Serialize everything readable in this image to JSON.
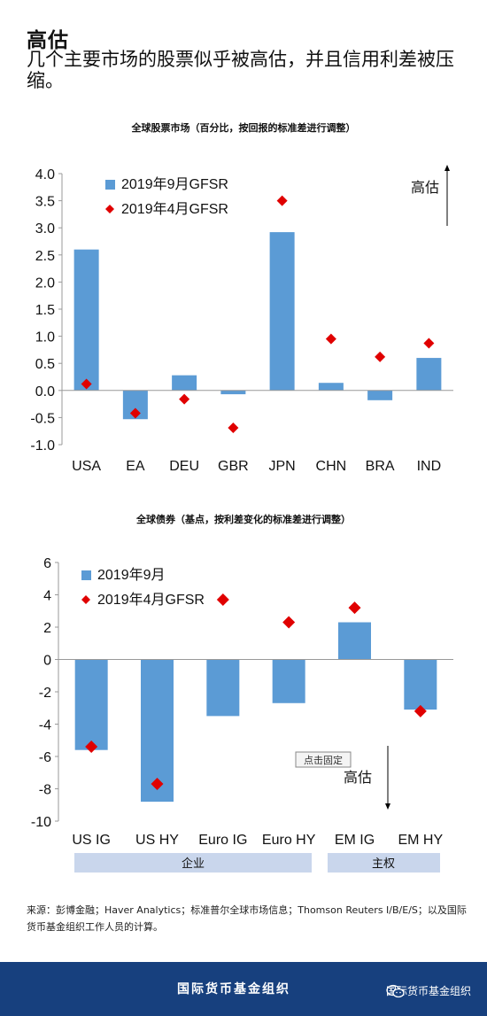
{
  "header": {
    "title": "高估",
    "subtitle": "几个主要市场的股票似乎被高估，并且信用利差被压缩。"
  },
  "colors": {
    "bar": "#5b9bd5",
    "marker": "#e00000",
    "footer": "#17407e",
    "group_band": "#c9d6ec"
  },
  "charts": [
    {
      "title": "全球股票市场（百分比，按回报的标准差进行调整）",
      "legend": [
        "2019年9月GFSR",
        "2019年4月GFSR"
      ],
      "annotation": "高估",
      "yticks": [
        "4.0",
        "3.5",
        "3.0",
        "2.5",
        "2.0",
        "1.5",
        "1.0",
        "0.5",
        "0.0",
        "-0.5",
        "-1.0"
      ]
    },
    {
      "title": "全球债券（基点，按利差变化的标准差进行调整）",
      "legend": [
        "2019年9月",
        "2019年4月GFSR"
      ],
      "annotation": "高估",
      "tooltip": "点击固定",
      "yticks": [
        "6",
        "4",
        "2",
        "0",
        "-2",
        "-4",
        "-6",
        "-8",
        "-10"
      ],
      "groups": [
        "企业",
        "主权"
      ]
    }
  ],
  "chart_data": [
    {
      "type": "bar",
      "title": "全球股票市场（百分比，按回报的标准差进行调整）",
      "categories": [
        "USA",
        "EA",
        "DEU",
        "GBR",
        "JPN",
        "CHN",
        "BRA",
        "IND"
      ],
      "series": [
        {
          "name": "2019年9月GFSR",
          "kind": "bar",
          "values": [
            2.6,
            -0.53,
            0.28,
            -0.07,
            2.92,
            0.14,
            -0.18,
            0.6
          ]
        },
        {
          "name": "2019年4月GFSR",
          "kind": "marker",
          "values": [
            0.12,
            -0.42,
            -0.16,
            -0.69,
            3.5,
            0.95,
            0.62,
            0.87
          ]
        }
      ],
      "ylim": [
        -1.0,
        4.0
      ],
      "grid": false,
      "legend_position": "top-left"
    },
    {
      "type": "bar",
      "title": "全球债券（基点，按利差变化的标准差进行调整）",
      "categories": [
        "US IG",
        "US HY",
        "Euro IG",
        "Euro HY",
        "EM IG",
        "EM HY"
      ],
      "series": [
        {
          "name": "2019年9月",
          "kind": "bar",
          "values": [
            -5.6,
            -8.8,
            -3.5,
            -2.7,
            2.3,
            -3.1
          ]
        },
        {
          "name": "2019年4月GFSR",
          "kind": "marker",
          "values": [
            -5.4,
            -7.7,
            3.7,
            2.3,
            3.2,
            -3.2
          ]
        }
      ],
      "ylim": [
        -10,
        6
      ],
      "grid": false,
      "legend_position": "top-left"
    }
  ],
  "source": "来源：彭博金融；Haver Analytics；标准普尔全球市场信息；Thomson Reuters I/B/E/S；以及国际货币基金组织工作人员的计算。",
  "footer": {
    "org": "国际货币基金组织",
    "wechat": "国际货币基金组织"
  }
}
